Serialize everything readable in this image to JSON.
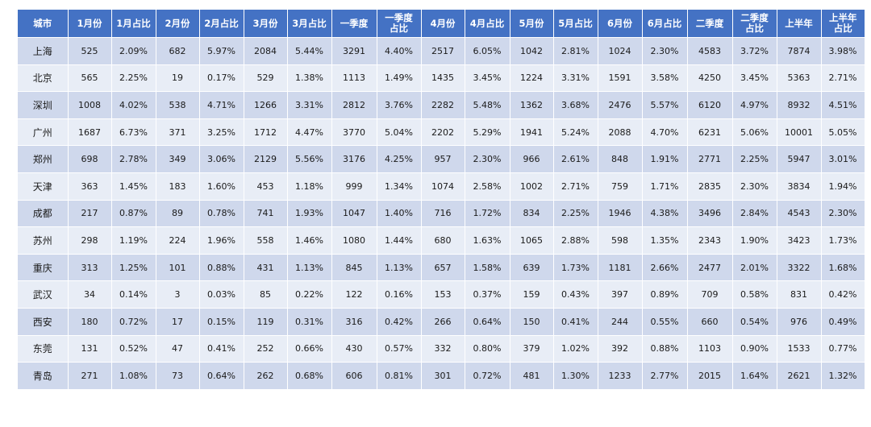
{
  "title": "",
  "headers": [
    "城市",
    "1月份",
    "1月占比",
    "2月份",
    "2月占比",
    "3月份",
    "3月占比",
    "一季度",
    [
      "一季度",
      "占比"
    ],
    "4月份",
    "4月占比",
    "5月份",
    "5月占比",
    "6月份",
    "6月占比",
    "二季度",
    [
      "二季度",
      "占比"
    ],
    "上半年",
    [
      "上半年",
      "占比"
    ]
  ],
  "rows": [
    [
      "上海",
      "525",
      "2.09%",
      "682",
      "5.97%",
      "2084",
      "5.44%",
      "3291",
      "4.40%",
      "2517",
      "6.05%",
      "1042",
      "2.81%",
      "1024",
      "2.30%",
      "4583",
      "3.72%",
      "7874",
      "3.98%"
    ],
    [
      "北京",
      "565",
      "2.25%",
      "19",
      "0.17%",
      "529",
      "1.38%",
      "1113",
      "1.49%",
      "1435",
      "3.45%",
      "1224",
      "3.31%",
      "1591",
      "3.58%",
      "4250",
      "3.45%",
      "5363",
      "2.71%"
    ],
    [
      "深圳",
      "1008",
      "4.02%",
      "538",
      "4.71%",
      "1266",
      "3.31%",
      "2812",
      "3.76%",
      "2282",
      "5.48%",
      "1362",
      "3.68%",
      "2476",
      "5.57%",
      "6120",
      "4.97%",
      "8932",
      "4.51%"
    ],
    [
      "广州",
      "1687",
      "6.73%",
      "371",
      "3.25%",
      "1712",
      "4.47%",
      "3770",
      "5.04%",
      "2202",
      "5.29%",
      "1941",
      "5.24%",
      "2088",
      "4.70%",
      "6231",
      "5.06%",
      "10001",
      "5.05%"
    ],
    [
      "郑州",
      "698",
      "2.78%",
      "349",
      "3.06%",
      "2129",
      "5.56%",
      "3176",
      "4.25%",
      "957",
      "2.30%",
      "966",
      "2.61%",
      "848",
      "1.91%",
      "2771",
      "2.25%",
      "5947",
      "3.01%"
    ],
    [
      "天津",
      "363",
      "1.45%",
      "183",
      "1.60%",
      "453",
      "1.18%",
      "999",
      "1.34%",
      "1074",
      "2.58%",
      "1002",
      "2.71%",
      "759",
      "1.71%",
      "2835",
      "2.30%",
      "3834",
      "1.94%"
    ],
    [
      "成都",
      "217",
      "0.87%",
      "89",
      "0.78%",
      "741",
      "1.93%",
      "1047",
      "1.40%",
      "716",
      "1.72%",
      "834",
      "2.25%",
      "1946",
      "4.38%",
      "3496",
      "2.84%",
      "4543",
      "2.30%"
    ],
    [
      "苏州",
      "298",
      "1.19%",
      "224",
      "1.96%",
      "558",
      "1.46%",
      "1080",
      "1.44%",
      "680",
      "1.63%",
      "1065",
      "2.88%",
      "598",
      "1.35%",
      "2343",
      "1.90%",
      "3423",
      "1.73%"
    ],
    [
      "重庆",
      "313",
      "1.25%",
      "101",
      "0.88%",
      "431",
      "1.13%",
      "845",
      "1.13%",
      "657",
      "1.58%",
      "639",
      "1.73%",
      "1181",
      "2.66%",
      "2477",
      "2.01%",
      "3322",
      "1.68%"
    ],
    [
      "武汉",
      "34",
      "0.14%",
      "3",
      "0.03%",
      "85",
      "0.22%",
      "122",
      "0.16%",
      "153",
      "0.37%",
      "159",
      "0.43%",
      "397",
      "0.89%",
      "709",
      "0.58%",
      "831",
      "0.42%"
    ],
    [
      "西安",
      "180",
      "0.72%",
      "17",
      "0.15%",
      "119",
      "0.31%",
      "316",
      "0.42%",
      "266",
      "0.64%",
      "150",
      "0.41%",
      "244",
      "0.55%",
      "660",
      "0.54%",
      "976",
      "0.49%"
    ],
    [
      "东莞",
      "131",
      "0.52%",
      "47",
      "0.41%",
      "252",
      "0.66%",
      "430",
      "0.57%",
      "332",
      "0.80%",
      "379",
      "1.02%",
      "392",
      "0.88%",
      "1103",
      "0.90%",
      "1533",
      "0.77%"
    ],
    [
      "青岛",
      "271",
      "1.08%",
      "73",
      "0.64%",
      "262",
      "0.68%",
      "606",
      "0.81%",
      "301",
      "0.72%",
      "481",
      "1.30%",
      "1233",
      "2.77%",
      "2015",
      "1.64%",
      "2621",
      "1.32%"
    ]
  ]
}
